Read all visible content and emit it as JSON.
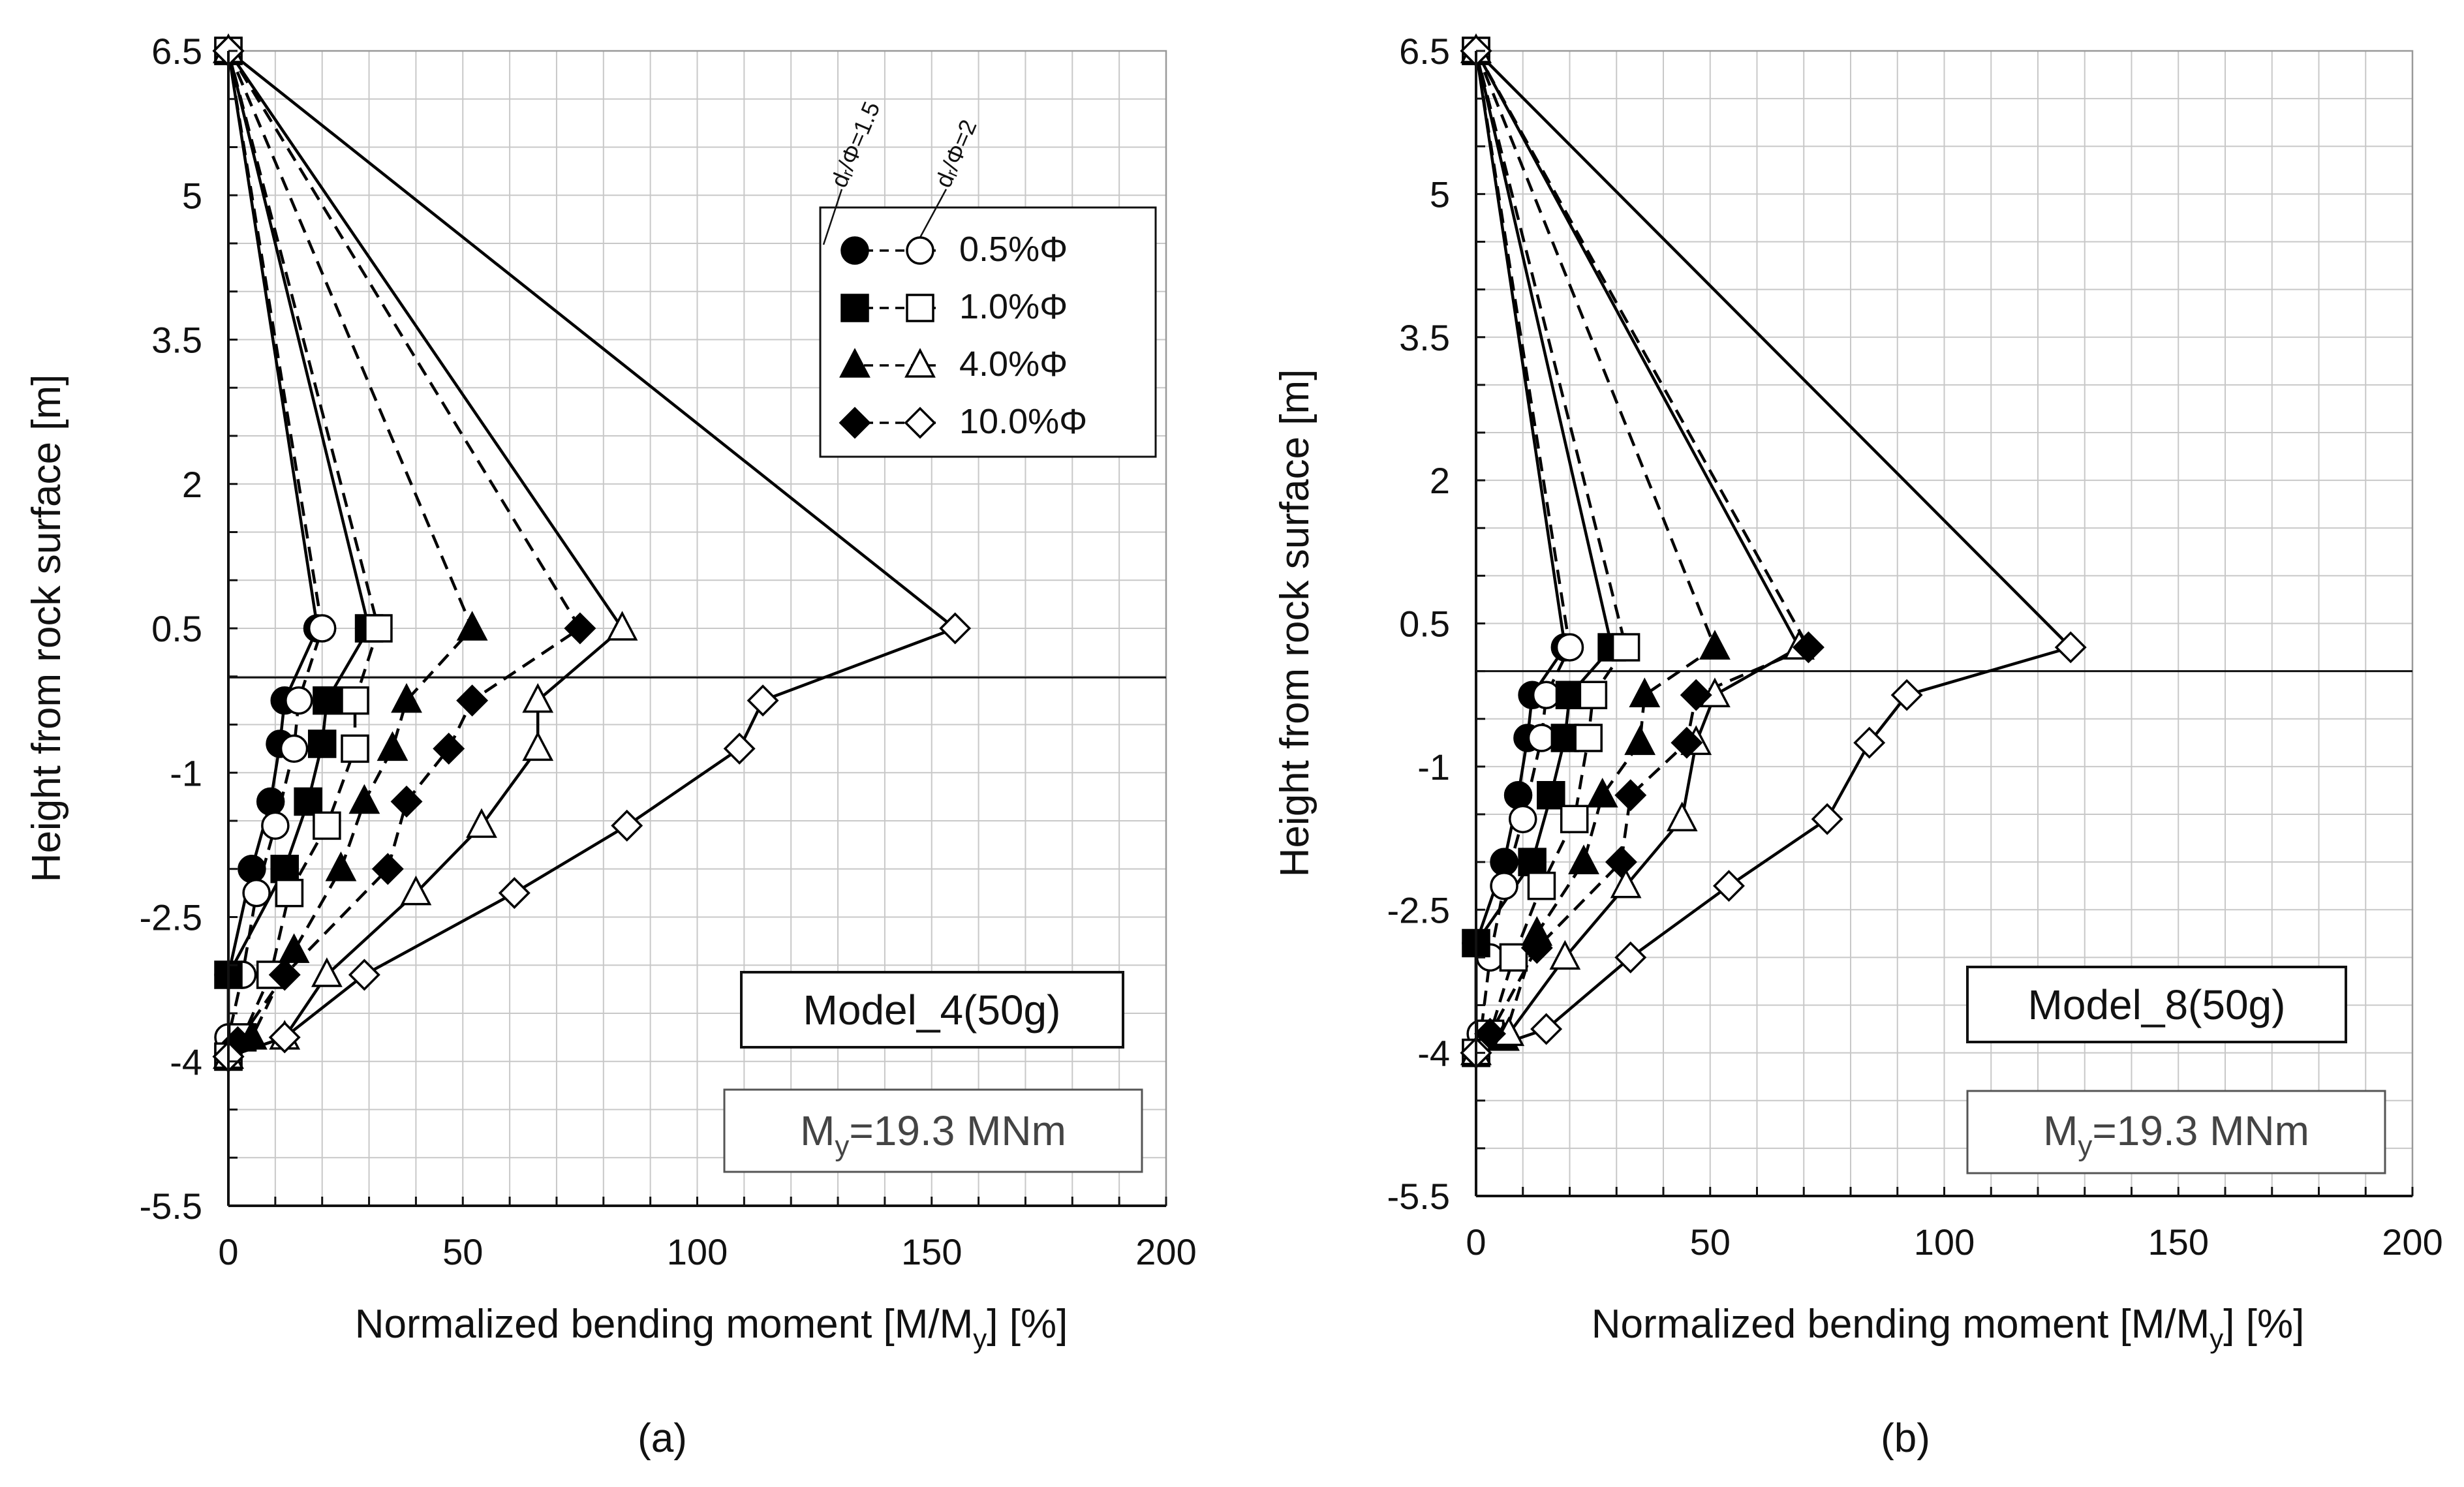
{
  "chart_data": [
    {
      "type": "line",
      "panel_label": "(a)",
      "model_label": "Model_4(50g)",
      "yield_label": {
        "prefix": "M",
        "sub": "y",
        "suffix": "=19.3 MNm"
      },
      "xlabel": {
        "pre": "Normalized bending moment [M/M",
        "sub": "y",
        "post": "] [%]"
      },
      "ylabel": "Height from rock surface [m]",
      "xlim": [
        0,
        200
      ],
      "ylim": [
        -5.5,
        6.5
      ],
      "xticks": [
        0,
        50,
        100,
        150,
        200
      ],
      "xtick_labels": [
        "0",
        "50",
        "100",
        "150",
        "200"
      ],
      "yticks": [
        -5.5,
        -4,
        -2.5,
        -1,
        0.5,
        2,
        3.5,
        5,
        6.5
      ],
      "ytick_labels": [
        "-5.5",
        "-4",
        "-2.5",
        "-1",
        "0.5",
        "2",
        "3.5",
        "5",
        "6.5"
      ],
      "rock_surface": -0.01,
      "legend": {
        "column_headers": [
          "dᵣ/Φ=1.5",
          "dᵣ/Φ=2"
        ],
        "entries": [
          {
            "label": "0.5%Φ",
            "marker": "circle"
          },
          {
            "label": "1.0%Φ",
            "marker": "square"
          },
          {
            "label": "4.0%Φ",
            "marker": "triangle"
          },
          {
            "label": "10.0%Φ",
            "marker": "diamond"
          }
        ]
      },
      "series": [
        {
          "name": "0.5%Φ dr/Φ=1.5",
          "marker": "circle",
          "filled": true,
          "dash": "solid",
          "points": [
            [
              0,
              6.5
            ],
            [
              19,
              0.5
            ],
            [
              12,
              -0.25
            ],
            [
              11,
              -0.7
            ],
            [
              9,
              -1.3
            ],
            [
              5,
              -2
            ],
            [
              0,
              -3.1
            ],
            [
              0,
              -3.95
            ]
          ]
        },
        {
          "name": "0.5%Φ dr/Φ=2",
          "marker": "circle",
          "filled": false,
          "dash": "dash",
          "points": [
            [
              0,
              6.5
            ],
            [
              20,
              0.5
            ],
            [
              15,
              -0.25
            ],
            [
              14,
              -0.75
            ],
            [
              10,
              -1.55
            ],
            [
              6,
              -2.25
            ],
            [
              3,
              -3.1
            ],
            [
              0,
              -3.75
            ],
            [
              0,
              -3.95
            ]
          ]
        },
        {
          "name": "1.0%Φ dr/Φ=1.5",
          "marker": "square",
          "filled": true,
          "dash": "solid",
          "points": [
            [
              0,
              6.5
            ],
            [
              30,
              0.5
            ],
            [
              21,
              -0.25
            ],
            [
              20,
              -0.7
            ],
            [
              17,
              -1.3
            ],
            [
              12,
              -2
            ],
            [
              0,
              -3.1
            ],
            [
              0,
              -3.95
            ]
          ]
        },
        {
          "name": "1.0%Φ dr/Φ=2",
          "marker": "square",
          "filled": false,
          "dash": "dash",
          "points": [
            [
              0,
              6.5
            ],
            [
              32,
              0.5
            ],
            [
              27,
              -0.25
            ],
            [
              27,
              -0.75
            ],
            [
              21,
              -1.55
            ],
            [
              13,
              -2.25
            ],
            [
              9,
              -3.1
            ],
            [
              3,
              -3.75
            ],
            [
              0,
              -3.95
            ]
          ]
        },
        {
          "name": "4.0%Φ dr/Φ=1.5",
          "marker": "triangle",
          "filled": true,
          "dash": "dash",
          "points": [
            [
              0,
              6.5
            ],
            [
              52,
              0.5
            ],
            [
              38,
              -0.25
            ],
            [
              35,
              -0.75
            ],
            [
              29,
              -1.3
            ],
            [
              24,
              -2
            ],
            [
              14,
              -2.85
            ],
            [
              5,
              -3.75
            ],
            [
              0,
              -3.95
            ]
          ]
        },
        {
          "name": "4.0%Φ dr/Φ=2",
          "marker": "triangle",
          "filled": false,
          "dash": "solid",
          "points": [
            [
              0,
              6.5
            ],
            [
              84,
              0.5
            ],
            [
              66,
              -0.25
            ],
            [
              66,
              -0.75
            ],
            [
              54,
              -1.55
            ],
            [
              40,
              -2.25
            ],
            [
              21,
              -3.1
            ],
            [
              12,
              -3.75
            ],
            [
              0,
              -3.95
            ]
          ]
        },
        {
          "name": "10.0%Φ dr/Φ=1.5",
          "marker": "diamond",
          "filled": true,
          "dash": "dash",
          "points": [
            [
              0,
              6.5
            ],
            [
              75,
              0.5
            ],
            [
              52,
              -0.25
            ],
            [
              47,
              -0.75
            ],
            [
              38,
              -1.3
            ],
            [
              34,
              -2
            ],
            [
              12,
              -3.1
            ],
            [
              2,
              -3.8
            ],
            [
              0,
              -3.95
            ]
          ]
        },
        {
          "name": "10.0%Φ dr/Φ=2",
          "marker": "diamond",
          "filled": false,
          "dash": "solid",
          "points": [
            [
              0,
              6.5
            ],
            [
              155,
              0.5
            ],
            [
              114,
              -0.25
            ],
            [
              109,
              -0.75
            ],
            [
              85,
              -1.55
            ],
            [
              61,
              -2.25
            ],
            [
              29,
              -3.1
            ],
            [
              12,
              -3.75
            ],
            [
              0,
              -3.95
            ]
          ]
        }
      ]
    },
    {
      "type": "line",
      "panel_label": "(b)",
      "model_label": "Model_8(50g)",
      "yield_label": {
        "prefix": "M",
        "sub": "y",
        "suffix": "=19.3 MNm"
      },
      "xlabel": {
        "pre": "Normalized bending moment [M/M",
        "sub": "y",
        "post": "] [%]"
      },
      "ylabel": "Height from rock surface [m]",
      "xlim": [
        0,
        200
      ],
      "ylim": [
        -5.5,
        6.5
      ],
      "xticks": [
        0,
        50,
        100,
        150,
        200
      ],
      "xtick_labels": [
        "0",
        "50",
        "100",
        "150",
        "200"
      ],
      "yticks": [
        -5.5,
        -4,
        -2.5,
        -1,
        0.5,
        2,
        3.5,
        5,
        6.5
      ],
      "ytick_labels": [
        "-5.5",
        "-4",
        "-2.5",
        "-1",
        "0.5",
        "2",
        "3.5",
        "5",
        "6.5"
      ],
      "rock_surface": 0.0,
      "legend": null,
      "series": [
        {
          "name": "0.5%Φ dr/Φ=1.5",
          "marker": "circle",
          "filled": true,
          "dash": "solid",
          "points": [
            [
              0,
              6.5
            ],
            [
              19,
              0.25
            ],
            [
              12,
              -0.25
            ],
            [
              11,
              -0.7
            ],
            [
              9,
              -1.3
            ],
            [
              6,
              -2
            ],
            [
              0,
              -2.85
            ],
            [
              0,
              -4
            ]
          ]
        },
        {
          "name": "0.5%Φ dr/Φ=2",
          "marker": "circle",
          "filled": false,
          "dash": "dash",
          "points": [
            [
              0,
              6.5
            ],
            [
              20,
              0.25
            ],
            [
              15,
              -0.25
            ],
            [
              14,
              -0.7
            ],
            [
              10,
              -1.55
            ],
            [
              6,
              -2.25
            ],
            [
              3,
              -3
            ],
            [
              1,
              -3.8
            ],
            [
              0,
              -4
            ]
          ]
        },
        {
          "name": "1.0%Φ dr/Φ=1.5",
          "marker": "square",
          "filled": true,
          "dash": "solid",
          "points": [
            [
              0,
              6.5
            ],
            [
              29,
              0.25
            ],
            [
              20,
              -0.25
            ],
            [
              19,
              -0.7
            ],
            [
              16,
              -1.3
            ],
            [
              12,
              -2
            ],
            [
              0,
              -2.85
            ],
            [
              0,
              -4
            ]
          ]
        },
        {
          "name": "1.0%Φ dr/Φ=2",
          "marker": "square",
          "filled": false,
          "dash": "dash",
          "points": [
            [
              0,
              6.5
            ],
            [
              32,
              0.25
            ],
            [
              25,
              -0.25
            ],
            [
              24,
              -0.7
            ],
            [
              21,
              -1.55
            ],
            [
              14,
              -2.25
            ],
            [
              8,
              -3
            ],
            [
              3,
              -3.8
            ],
            [
              0,
              -4
            ]
          ]
        },
        {
          "name": "4.0%Φ dr/Φ=1.5",
          "marker": "triangle",
          "filled": true,
          "dash": "dash",
          "points": [
            [
              0,
              6.5
            ],
            [
              51,
              0.25
            ],
            [
              36,
              -0.25
            ],
            [
              35,
              -0.75
            ],
            [
              27,
              -1.3
            ],
            [
              23,
              -2
            ],
            [
              13,
              -2.75
            ],
            [
              6,
              -3.85
            ],
            [
              0,
              -4
            ]
          ]
        },
        {
          "name": "4.0%Φ dr/Φ=2",
          "marker": "triangle",
          "filled": false,
          "dash": "solid",
          "points": [
            [
              0,
              6.5
            ],
            [
              69,
              0.25
            ],
            [
              51,
              -0.25
            ],
            [
              47,
              -0.75
            ],
            [
              44,
              -1.55
            ],
            [
              32,
              -2.25
            ],
            [
              19,
              -3
            ],
            [
              7,
              -3.8
            ],
            [
              0,
              -4
            ]
          ]
        },
        {
          "name": "10.0%Φ dr/Φ=1.5",
          "marker": "diamond",
          "filled": true,
          "dash": "dash",
          "points": [
            [
              0,
              6.5
            ],
            [
              71,
              0.25
            ],
            [
              47,
              -0.25
            ],
            [
              45,
              -0.75
            ],
            [
              33,
              -1.3
            ],
            [
              31,
              -2
            ],
            [
              13,
              -2.9
            ],
            [
              3,
              -3.8
            ],
            [
              0,
              -4
            ]
          ]
        },
        {
          "name": "10.0%Φ dr/Φ=2",
          "marker": "diamond",
          "filled": false,
          "dash": "solid",
          "points": [
            [
              0,
              6.5
            ],
            [
              127,
              0.25
            ],
            [
              92,
              -0.25
            ],
            [
              84,
              -0.75
            ],
            [
              75,
              -1.55
            ],
            [
              54,
              -2.25
            ],
            [
              33,
              -3
            ],
            [
              15,
              -3.75
            ],
            [
              0,
              -4
            ]
          ]
        }
      ]
    }
  ]
}
